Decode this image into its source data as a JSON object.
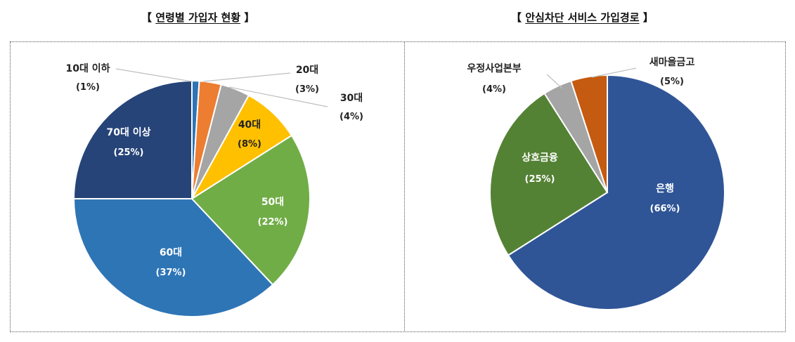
{
  "charts": {
    "left_title": "연령별 가입자 현황",
    "right_title": "안심차단 서비스 가입경로",
    "bracket_open": "【",
    "bracket_close": "】"
  },
  "chart_data": [
    {
      "type": "pie",
      "title": "연령별 가입자 현황",
      "slices": [
        {
          "label": "10대 이하",
          "pct_label": "(1%)",
          "value": 1,
          "color": "#2e74b5"
        },
        {
          "label": "20대",
          "pct_label": "(3%)",
          "value": 3,
          "color": "#ed7d31"
        },
        {
          "label": "30대",
          "pct_label": "(4%)",
          "value": 4,
          "color": "#a5a5a5"
        },
        {
          "label": "40대",
          "pct_label": "(8%)",
          "value": 8,
          "color": "#ffc000"
        },
        {
          "label": "50대",
          "pct_label": "(22%)",
          "value": 22,
          "color": "#70ad47"
        },
        {
          "label": "60대",
          "pct_label": "(37%)",
          "value": 37,
          "color": "#2e75b6"
        },
        {
          "label": "70대 이상",
          "pct_label": "(25%)",
          "value": 25,
          "color": "#264478"
        }
      ]
    },
    {
      "type": "pie",
      "title": "안심차단 서비스 가입경로",
      "slices": [
        {
          "label": "은행",
          "pct_label": "(66%)",
          "value": 66,
          "color": "#2f5597"
        },
        {
          "label": "상호금융",
          "pct_label": "(25%)",
          "value": 25,
          "color": "#548235"
        },
        {
          "label": "우정사업본부",
          "pct_label": "(4%)",
          "value": 4,
          "color": "#a5a5a5"
        },
        {
          "label": "새마을금고",
          "pct_label": "(5%)",
          "value": 5,
          "color": "#c55a11"
        }
      ]
    }
  ]
}
